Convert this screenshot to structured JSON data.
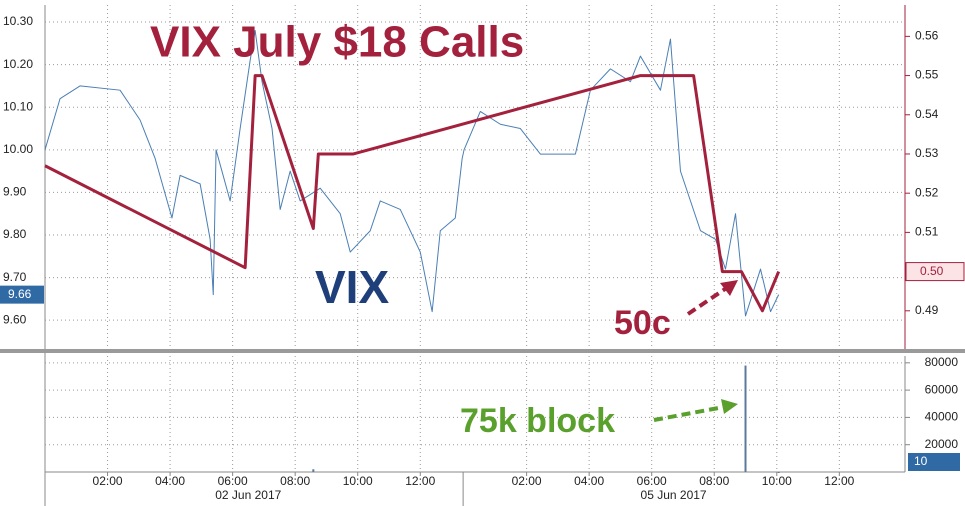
{
  "chart_data": [
    {
      "type": "line",
      "xlim": [
        0,
        27.5
      ],
      "ylim": [
        9.53,
        10.34
      ],
      "yticks": [
        {
          "value": 9.6,
          "label": "9.60"
        },
        {
          "value": 9.7,
          "label": "9.70"
        },
        {
          "value": 9.8,
          "label": "9.80"
        },
        {
          "value": 9.9,
          "label": "9.90"
        },
        {
          "value": 10.0,
          "label": "10.00"
        },
        {
          "value": 10.1,
          "label": "10.10"
        },
        {
          "value": 10.2,
          "label": "10.20"
        },
        {
          "value": 10.3,
          "label": "10.30"
        }
      ],
      "y2lim": [
        0.48,
        0.568
      ],
      "y2ticks": [
        0.49,
        {
          "value": 0.5,
          "label": "0.50"
        },
        0.51,
        0.52,
        0.53,
        0.54,
        0.55,
        0.56
      ],
      "grid": true,
      "series": [
        {
          "name": "VIX",
          "color": "#4a7fb5",
          "axis": "y",
          "x": [
            0,
            0.48,
            1.12,
            2.4,
            3.04,
            3.52,
            4.06,
            4.32,
            4.96,
            5.28,
            5.38,
            5.47,
            5.92,
            6.24,
            6.56,
            6.72,
            6.94,
            7.26,
            7.52,
            7.84,
            8.16,
            8.8,
            9.44,
            9.76,
            10.4,
            10.72,
            11.36,
            12.0,
            12.38,
            12.64,
            13.12,
            13.34,
            13.4,
            13.92,
            14.56,
            15.2,
            15.84,
            16.96,
            17.44,
            18.08,
            18.72,
            19.04,
            19.68,
            20.0,
            20.32,
            20.96,
            21.44,
            21.76,
            22.08,
            22.4,
            22.88,
            23.2,
            23.46
          ],
          "values": [
            10.0,
            10.12,
            10.15,
            10.14,
            10.07,
            9.98,
            9.84,
            9.94,
            9.92,
            9.79,
            9.66,
            10.0,
            9.88,
            10.05,
            10.21,
            10.28,
            10.16,
            10.05,
            9.86,
            9.95,
            9.88,
            9.91,
            9.85,
            9.76,
            9.81,
            9.88,
            9.86,
            9.76,
            9.62,
            9.81,
            9.84,
            9.98,
            10.0,
            10.09,
            10.06,
            10.05,
            9.99,
            9.99,
            10.14,
            10.19,
            10.16,
            10.22,
            10.14,
            10.26,
            9.95,
            9.81,
            9.79,
            9.72,
            9.85,
            9.61,
            9.72,
            9.62,
            9.66
          ]
        },
        {
          "name": "VIX July $18 Calls",
          "color": "#a3213d",
          "axis": "y2",
          "x": [
            0,
            6.4,
            6.72,
            6.94,
            8.58,
            8.74,
            9.86,
            19.04,
            20.74,
            21.66,
            22.27,
            22.94,
            23.46
          ],
          "values": [
            0.527,
            0.501,
            0.55,
            0.55,
            0.511,
            0.53,
            0.53,
            0.55,
            0.55,
            0.5,
            0.5,
            0.49,
            0.5
          ],
          "last_label": "0.50"
        }
      ],
      "annotations": [
        "50c"
      ]
    },
    {
      "type": "bar",
      "xlim": [
        0,
        27.5
      ],
      "xticks": [
        {
          "value": 2,
          "label": "02:00"
        },
        {
          "value": 4,
          "label": "04:00"
        },
        {
          "value": 6,
          "label": "06:00"
        },
        {
          "value": 8,
          "label": "08:00"
        },
        {
          "value": 10,
          "label": "10:00"
        },
        {
          "value": 12,
          "label": "12:00"
        },
        {
          "value": 15.4,
          "label": "02:00"
        },
        {
          "value": 17.4,
          "label": "04:00"
        },
        {
          "value": 19.4,
          "label": "06:00"
        },
        {
          "value": 21.4,
          "label": "08:00"
        },
        {
          "value": 23.4,
          "label": "10:00"
        },
        {
          "value": 25.4,
          "label": "12:00"
        }
      ],
      "date_labels": [
        {
          "value": 6.5,
          "label": "02 Jun 2017"
        },
        {
          "value": 20.1,
          "label": "05 Jun 2017"
        }
      ],
      "session_breaks": [
        13.37
      ],
      "ylim": [
        0,
        85000
      ],
      "yticks": [
        20000,
        40000,
        60000,
        80000
      ],
      "grid": true,
      "color": "#5a7a9c",
      "x": [
        8.58,
        22.4,
        23.46
      ],
      "values": [
        2000,
        78000,
        10
      ],
      "annotations": [
        "75k block"
      ]
    }
  ]
}
